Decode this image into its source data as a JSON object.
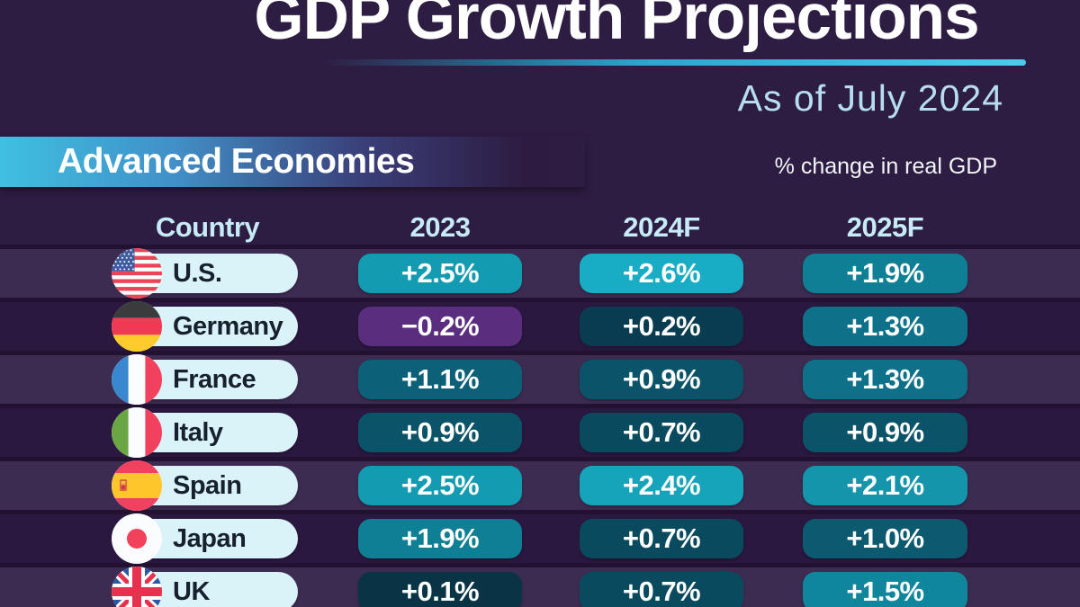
{
  "header": {
    "title": "GDP Growth Projections",
    "subtitle": "As of July 2024",
    "section_label": "Advanced Economies",
    "unit_note": "% change in real GDP"
  },
  "table": {
    "columns": [
      "Country",
      "2023",
      "2024F",
      "2025F"
    ],
    "rows": [
      {
        "country": "U.S.",
        "flag_icon": "us-flag-icon",
        "values": [
          {
            "text": "+2.5%",
            "color": "#139cb1"
          },
          {
            "text": "+2.6%",
            "color": "#18adc4"
          },
          {
            "text": "+1.9%",
            "color": "#0f7f96"
          }
        ]
      },
      {
        "country": "Germany",
        "flag_icon": "germany-flag-icon",
        "values": [
          {
            "text": "−0.2%",
            "color": "#5b2d7e"
          },
          {
            "text": "+0.2%",
            "color": "#093c50"
          },
          {
            "text": "+1.3%",
            "color": "#0e7089"
          }
        ]
      },
      {
        "country": "France",
        "flag_icon": "france-flag-icon",
        "values": [
          {
            "text": "+1.1%",
            "color": "#0c6078"
          },
          {
            "text": "+0.9%",
            "color": "#0b5368"
          },
          {
            "text": "+1.3%",
            "color": "#0e7089"
          }
        ]
      },
      {
        "country": "Italy",
        "flag_icon": "italy-flag-icon",
        "values": [
          {
            "text": "+0.9%",
            "color": "#0b5368"
          },
          {
            "text": "+0.7%",
            "color": "#0a4a5e"
          },
          {
            "text": "+0.9%",
            "color": "#0b5368"
          }
        ]
      },
      {
        "country": "Spain",
        "flag_icon": "spain-flag-icon",
        "values": [
          {
            "text": "+2.5%",
            "color": "#139cb1"
          },
          {
            "text": "+2.4%",
            "color": "#16a4ba"
          },
          {
            "text": "+2.1%",
            "color": "#1495ab"
          }
        ]
      },
      {
        "country": "Japan",
        "flag_icon": "japan-flag-icon",
        "values": [
          {
            "text": "+1.9%",
            "color": "#0f7f96"
          },
          {
            "text": "+0.7%",
            "color": "#0a4a5e"
          },
          {
            "text": "+1.0%",
            "color": "#0b5a70"
          }
        ]
      },
      {
        "country": "UK",
        "flag_icon": "uk-flag-icon",
        "values": [
          {
            "text": "+0.1%",
            "color": "#093445"
          },
          {
            "text": "+0.7%",
            "color": "#0a4a5e"
          },
          {
            "text": "+1.5%",
            "color": "#10869c"
          }
        ]
      }
    ]
  },
  "chart_data": {
    "type": "table",
    "title": "GDP Growth Projections",
    "subtitle": "As of July 2024",
    "section": "Advanced Economies",
    "unit": "% change in real GDP",
    "columns": [
      "Country",
      "2023",
      "2024F",
      "2025F"
    ],
    "rows": [
      {
        "country": "U.S.",
        "2023": 2.5,
        "2024F": 2.6,
        "2025F": 1.9
      },
      {
        "country": "Germany",
        "2023": -0.2,
        "2024F": 0.2,
        "2025F": 1.3
      },
      {
        "country": "France",
        "2023": 1.1,
        "2024F": 0.9,
        "2025F": 1.3
      },
      {
        "country": "Italy",
        "2023": 0.9,
        "2024F": 0.7,
        "2025F": 0.9
      },
      {
        "country": "Spain",
        "2023": 2.5,
        "2024F": 2.4,
        "2025F": 2.1
      },
      {
        "country": "Japan",
        "2023": 1.9,
        "2024F": 0.7,
        "2025F": 1.0
      },
      {
        "country": "UK",
        "2023": 0.1,
        "2024F": 0.7,
        "2025F": 1.5
      }
    ],
    "layout_hints": {
      "value_color_scale": "dark navy (low) to bright cyan (high), purple for negative",
      "rows_alternate_bands": true
    }
  },
  "colors": {
    "background": "#2e1d42",
    "rows_zone_background": "#221130",
    "band_light": "#3d2c52",
    "band_dark": "#2b1840",
    "country_pill": "#d9f3f9",
    "accent_cyan": "#47cfee",
    "column_header_text": "#c6ebf6",
    "subtitle_text": "#b7ddf0",
    "negative_purple": "#5b2d7e"
  }
}
